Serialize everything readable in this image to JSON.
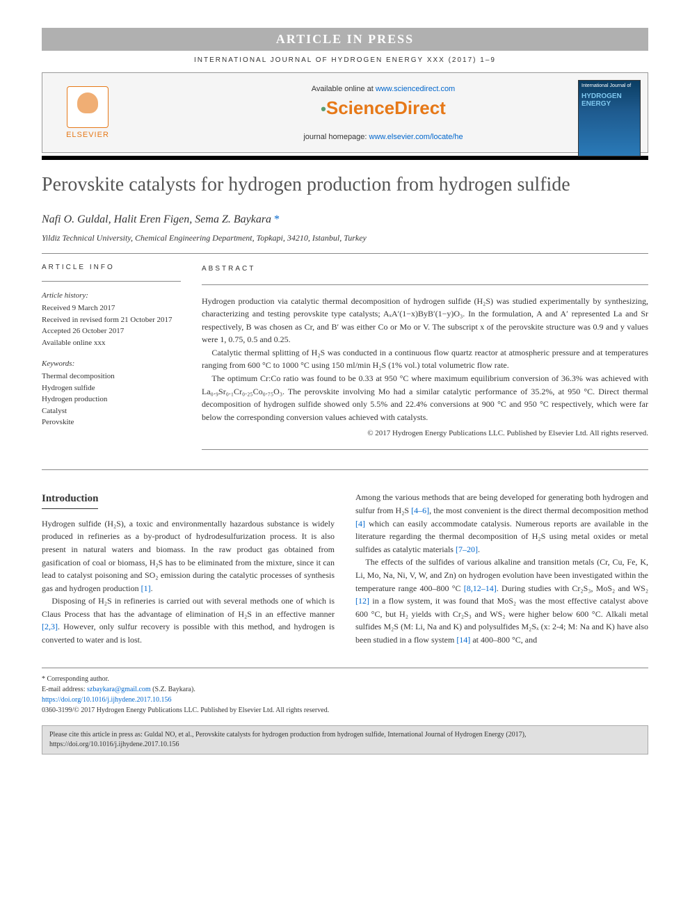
{
  "banner": "ARTICLE IN PRESS",
  "journal_ref": "INTERNATIONAL JOURNAL OF HYDROGEN ENERGY XXX (2017) 1–9",
  "header": {
    "available_prefix": "Available online at ",
    "available_link": "www.sciencedirect.com",
    "sd_brand": "ScienceDirect",
    "homepage_prefix": "journal homepage: ",
    "homepage_link": "www.elsevier.com/locate/he",
    "elsevier_label": "ELSEVIER",
    "cover_small": "International Journal of",
    "cover_large": "HYDROGEN ENERGY"
  },
  "title": "Perovskite catalysts for hydrogen production from hydrogen sulfide",
  "authors": "Nafi O. Guldal, Halit Eren Figen, Sema Z. Baykara",
  "affiliation": "Yildiz Technical University, Chemical Engineering Department, Topkapi, 34210, Istanbul, Turkey",
  "info": {
    "heading": "ARTICLE INFO",
    "history_label": "Article history:",
    "received": "Received 9 March 2017",
    "revised": "Received in revised form 21 October 2017",
    "accepted": "Accepted 26 October 2017",
    "online": "Available online xxx",
    "keywords_label": "Keywords:",
    "kw1": "Thermal decomposition",
    "kw2": "Hydrogen sulfide",
    "kw3": "Hydrogen production",
    "kw4": "Catalyst",
    "kw5": "Perovskite"
  },
  "abstract": {
    "heading": "ABSTRACT",
    "p1": "Hydrogen production via catalytic thermal decomposition of hydrogen sulfide (H₂S) was studied experimentally by synthesizing, characterizing and testing perovskite type catalysts; AₓA′(1−x)ByB′(1−y)O₃. In the formulation, A and A′ represented La and Sr respectively, B was chosen as Cr, and B′ was either Co or Mo or V. The subscript x of the perovskite structure was 0.9 and y values were 1, 0.75, 0.5 and 0.25.",
    "p2": "Catalytic thermal splitting of H₂S was conducted in a continuous flow quartz reactor at atmospheric pressure and at temperatures ranging from 600 °C to 1000 °C using 150 ml/min H₂S (1% vol.) total volumetric flow rate.",
    "p3": "The optimum Cr:Co ratio was found to be 0.33 at 950 °C where maximum equilibrium conversion of 36.3% was achieved with La₀.₉Sr₀.₁Cr₀.₂₅Co₀.₇₅O₃. The perovskite involving Mo had a similar catalytic performance of 35.2%, at 950 °C. Direct thermal decomposition of hydrogen sulfide showed only 5.5% and 22.4% conversions at 900 °C and 950 °C respectively, which were far below the corresponding conversion values achieved with catalysts.",
    "copyright": "© 2017 Hydrogen Energy Publications LLC. Published by Elsevier Ltd. All rights reserved."
  },
  "body": {
    "intro_heading": "Introduction",
    "left_p1a": "Hydrogen sulfide (H₂S), a toxic and environmentally hazardous substance is widely produced in refineries as a by-product of hydrodesulfurization process. It is also present in natural waters and biomass. In the raw product gas obtained from gasification of coal or biomass, H₂S has to be eliminated from the mixture, since it can lead to catalyst poisoning and SO₂ emission during the catalytic processes of synthesis gas and hydrogen production ",
    "ref1": "[1]",
    "left_p2a": "Disposing of H₂S in refineries is carried out with several methods one of which is Claus Process that has the advantage of elimination of H₂S in an effective manner ",
    "ref23": "[2,3]",
    "left_p2b": ". However, only sulfur recovery is possible with this method, and hydrogen is converted to water and is lost.",
    "right_p1a": "Among the various methods that are being developed for generating both hydrogen and sulfur from H₂S ",
    "ref46": "[4–6]",
    "right_p1b": ", the most convenient is the direct thermal decomposition method ",
    "ref4": "[4]",
    "right_p1c": " which can easily accommodate catalysis. Numerous reports are available in the literature regarding the thermal decomposition of H₂S using metal oxides or metal sulfides as catalytic materials ",
    "ref720": "[7–20]",
    "right_p2a": "The effects of the sulfides of various alkaline and transition metals (Cr, Cu, Fe, K, Li, Mo, Na, Ni, V, W, and Zn) on hydrogen evolution have been investigated within the temperature range 400–800 °C ",
    "ref81214": "[8,12–14]",
    "right_p2b": ". During studies with Cr₂S₃, MoS₂ and WS₂ ",
    "ref12": "[12]",
    "right_p2c": " in a flow system, it was found that MoS₂ was the most effective catalyst above 600 °C, but H₂ yields with Cr₂S₃ and WS₂ were higher below 600 °C. Alkali metal sulfides M₂S (M: Li, Na and K) and polysulfides M₂Sₓ (x: 2-4; M: Na and K) have also been studied in a flow system ",
    "ref14": "[14]",
    "right_p2d": " at 400–800 °C, and"
  },
  "footer": {
    "corr": "* Corresponding author.",
    "email_label": "E-mail address: ",
    "email": "szbaykara@gmail.com",
    "email_name": " (S.Z. Baykara).",
    "doi": "https://doi.org/10.1016/j.ijhydene.2017.10.156",
    "issn": "0360-3199/© 2017 Hydrogen Energy Publications LLC. Published by Elsevier Ltd. All rights reserved.",
    "cite": "Please cite this article in press as: Guldal NO, et al., Perovskite catalysts for hydrogen production from hydrogen sulfide, International Journal of Hydrogen Energy (2017), https://doi.org/10.1016/j.ijhydene.2017.10.156"
  },
  "colors": {
    "banner_bg": "#b0b0b0",
    "orange": "#e67817",
    "link": "#0066cc",
    "cover_grad_top": "#0a3d62",
    "cover_text": "#7fc8f0"
  }
}
